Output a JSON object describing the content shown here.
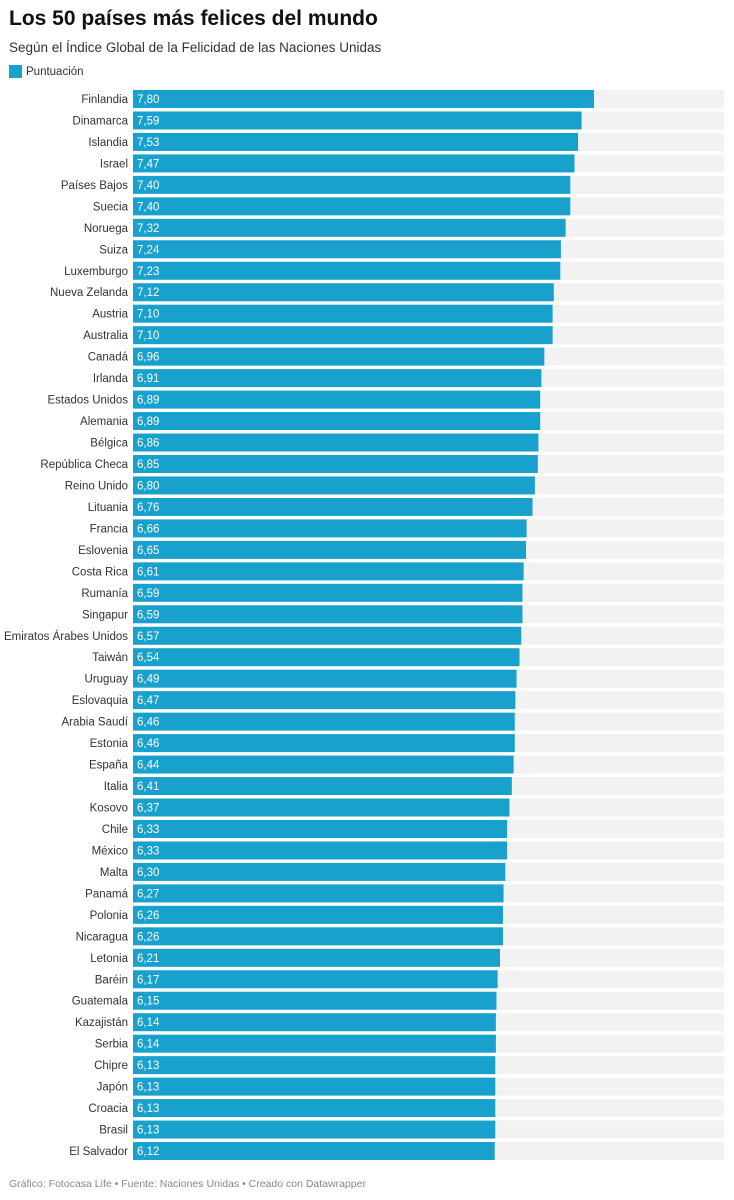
{
  "title": "Los 50 países más felices del mundo",
  "subtitle": "Según el Índice Global de la Felicidad de las Naciones Unidas",
  "footer": "Gráfico: Fotocasa Life • Fuente: Naciones Unidas • Creado con Datawrapper",
  "colors": {
    "bar": "#18a1cd",
    "track": "#f2f2f2"
  },
  "chart_data": {
    "type": "bar",
    "orientation": "horizontal",
    "xlim": [
      0,
      10
    ],
    "grid": false,
    "legend_placement": "top-left",
    "series": [
      {
        "name": "Puntuación",
        "values": [
          7.8,
          7.59,
          7.53,
          7.47,
          7.4,
          7.4,
          7.32,
          7.24,
          7.23,
          7.12,
          7.1,
          7.1,
          6.96,
          6.91,
          6.89,
          6.89,
          6.86,
          6.85,
          6.8,
          6.76,
          6.66,
          6.65,
          6.61,
          6.59,
          6.59,
          6.57,
          6.54,
          6.49,
          6.47,
          6.46,
          6.46,
          6.44,
          6.41,
          6.37,
          6.33,
          6.33,
          6.3,
          6.27,
          6.26,
          6.26,
          6.21,
          6.17,
          6.15,
          6.14,
          6.14,
          6.13,
          6.13,
          6.13,
          6.13,
          6.12
        ]
      }
    ],
    "categories": [
      "Finlandia",
      "Dinamarca",
      "Islandia",
      "Israel",
      "Países Bajos",
      "Suecia",
      "Noruega",
      "Suiza",
      "Luxemburgo",
      "Nueva Zelanda",
      "Austria",
      "Australia",
      "Canadá",
      "Irlanda",
      "Estados Unidos",
      "Alemania",
      "Bélgica",
      "República Checa",
      "Reino Unido",
      "Lituania",
      "Francia",
      "Eslovenia",
      "Costa Rica",
      "Rumanía",
      "Singapur",
      "Emiratos Árabes Unidos",
      "Taiwán",
      "Uruguay",
      "Eslovaquia",
      "Arabia Saudí",
      "Estonia",
      "España",
      "Italia",
      "Kosovo",
      "Chile",
      "México",
      "Malta",
      "Panamá",
      "Polonia",
      "Nicaragua",
      "Letonia",
      "Baréin",
      "Guatemala",
      "Kazajistán",
      "Serbia",
      "Chipre",
      "Japón",
      "Croacia",
      "Brasil",
      "El Salvador"
    ]
  }
}
